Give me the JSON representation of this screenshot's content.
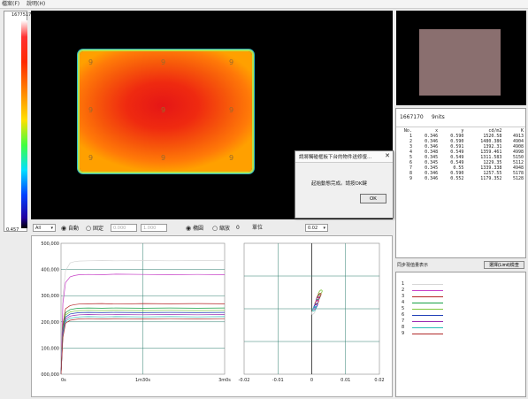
{
  "menu": {
    "items": [
      "檔案(F)",
      "說明(H)"
    ]
  },
  "scale": {
    "max": "1677517",
    "min": "0.457"
  },
  "thermal": {
    "markers": [
      "9",
      "9",
      "9",
      "9",
      "9",
      "9",
      "9",
      "9",
      "9"
    ]
  },
  "table": {
    "header_a": "1667170",
    "header_b": "9nits",
    "columns": [
      "No.",
      "x",
      "y",
      "cd/m2",
      "K"
    ],
    "rows": [
      [
        "1",
        "0.346",
        "0.590",
        "1520.58",
        "4913"
      ],
      [
        "2",
        "0.346",
        "0.590",
        "1480.386",
        "4904"
      ],
      [
        "3",
        "0.346",
        "0.591",
        "1392.31",
        "4908"
      ],
      [
        "4",
        "0.348",
        "0.549",
        "1359.461",
        "4998"
      ],
      [
        "5",
        "0.345",
        "0.549",
        "1311.583",
        "5150"
      ],
      [
        "6",
        "0.345",
        "0.549",
        "1229.35",
        "5112"
      ],
      [
        "7",
        "0.345",
        "0.55",
        "1339.338",
        "4948"
      ],
      [
        "8",
        "0.346",
        "0.590",
        "1257.55",
        "5178"
      ],
      [
        "9",
        "0.346",
        "0.552",
        "1179.352",
        "5128"
      ]
    ]
  },
  "dialog": {
    "title": "請將觸碰框板下台的物件送修復...",
    "close": "✕",
    "message": "起始動態完成。請按OK鍵",
    "ok_label": "OK"
  },
  "controls": {
    "select_value": "All",
    "radio_auto": "自動",
    "radio_fixed": "固定",
    "min_value": "0.000",
    "max_value": "1.000",
    "radio_ellipse": "橢圓",
    "radio_zoom": "縮放",
    "num_value": "0",
    "unit_label": "單位",
    "step_value": "0.02"
  },
  "side_buttons": {
    "stats_label": "同步現值量表示",
    "record_label": "選擇(Limit)檢查"
  },
  "colors": [
    "#d6d6d6",
    "#c63ec6",
    "#b52424",
    "#17a044",
    "#7ec63e",
    "#1f3fb8",
    "#9b2ab0",
    "#2bbfb6",
    "#b02a2a"
  ],
  "legend_labels": [
    "1",
    "2",
    "3",
    "4",
    "5",
    "6",
    "7",
    "8",
    "9"
  ],
  "chart_data": [
    {
      "type": "line",
      "title": "",
      "xticks": [
        "0s",
        "1m30s",
        "3m0s"
      ],
      "yticks": [
        "500,000",
        "400,000",
        "300,000",
        "200,000",
        "100,000",
        "000,000"
      ],
      "ylim": [
        0,
        500000
      ],
      "xlim": [
        0,
        180
      ],
      "grid": true,
      "series_x": [
        0,
        2,
        5,
        10,
        15,
        20,
        30,
        45,
        60,
        90,
        120,
        150,
        180
      ],
      "series": [
        {
          "values": [
            0,
            300000,
            395000,
            425000,
            430000,
            432000,
            433000,
            434000,
            433000,
            434000,
            433000,
            434000,
            434000
          ]
        },
        {
          "values": [
            0,
            270000,
            350000,
            372000,
            377000,
            380000,
            381000,
            380000,
            382000,
            381000,
            380000,
            381000,
            380000
          ]
        },
        {
          "values": [
            0,
            190000,
            250000,
            262000,
            266000,
            268000,
            269000,
            270000,
            268000,
            270000,
            269000,
            270000,
            269000
          ]
        },
        {
          "values": [
            0,
            175000,
            235000,
            247000,
            250000,
            252000,
            253000,
            252000,
            253000,
            252000,
            253000,
            252000,
            253000
          ]
        },
        {
          "values": [
            0,
            168000,
            226000,
            238000,
            241000,
            243000,
            244000,
            243000,
            244000,
            243000,
            244000,
            243000,
            244000
          ]
        },
        {
          "values": [
            0,
            160000,
            218000,
            230000,
            233000,
            235000,
            236000,
            235000,
            236000,
            235000,
            236000,
            235000,
            236000
          ]
        },
        {
          "values": [
            0,
            154000,
            210000,
            222000,
            225000,
            227000,
            228000,
            227000,
            228000,
            227000,
            228000,
            227000,
            228000
          ]
        },
        {
          "values": [
            0,
            148000,
            203000,
            214000,
            217000,
            219000,
            220000,
            219000,
            220000,
            219000,
            220000,
            219000,
            220000
          ]
        },
        {
          "values": [
            0,
            140000,
            195000,
            206000,
            209000,
            211000,
            212000,
            211000,
            212000,
            211000,
            212000,
            211000,
            212000
          ]
        }
      ]
    },
    {
      "type": "scatter",
      "title": "",
      "xticks": [
        "-0.02",
        "-0.01",
        "0",
        "0.01",
        "0.02"
      ],
      "xlim": [
        -0.02,
        0.02
      ],
      "ylim": [
        -0.02,
        0.02
      ],
      "grid": true,
      "points": [
        [
          0.0005,
          -0.001
        ],
        [
          0.001,
          0.0005
        ],
        [
          0.0015,
          0.002
        ],
        [
          0.002,
          0.0035
        ],
        [
          0.0025,
          0.005
        ],
        [
          0.0012,
          0.001
        ],
        [
          0.0018,
          0.003
        ],
        [
          0.0008,
          0.0
        ],
        [
          0.0022,
          0.004
        ]
      ]
    }
  ]
}
